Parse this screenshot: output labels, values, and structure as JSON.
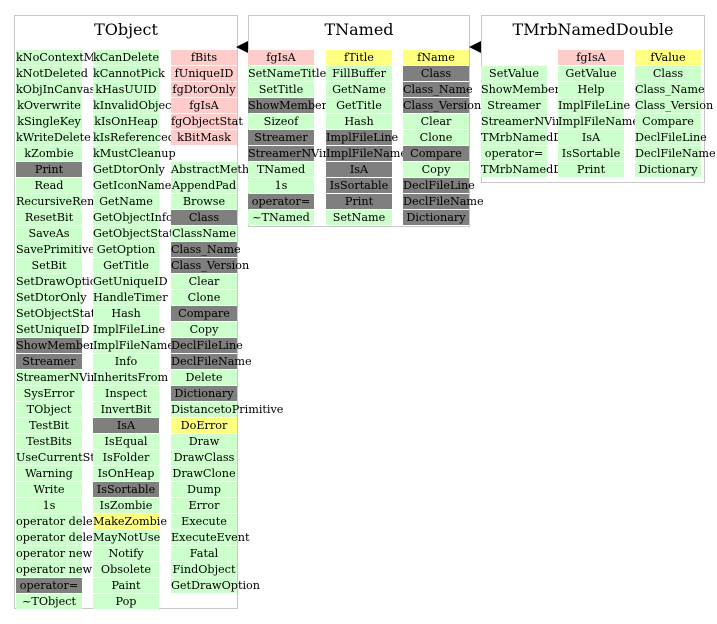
{
  "classes": [
    {
      "name": "TObject",
      "columns": [
        [
          "kNoContextMenu",
          "kNotDeleted",
          "kObjInCanvas",
          "kOverwrite",
          "kSingleKey",
          "kWriteDelete",
          "kZombie",
          "Print",
          "Read",
          "RecursiveRemove",
          "ResetBit",
          "SaveAs",
          "SavePrimitive",
          "SetBit",
          "SetDrawOption",
          "SetDtorOnly",
          "SetObjectStat",
          "SetUniqueID",
          "ShowMembers",
          "Streamer",
          "StreamerNVirtual",
          "SysError",
          "TObject",
          "TestBit",
          "TestBits",
          "UseCurrentStyle",
          "Warning",
          "Write",
          "1s",
          "operator delete",
          "operator delete[]",
          "operator new",
          "operator new[]",
          "operator=",
          "~TObject"
        ],
        [
          "kCanDelete",
          "kCannotPick",
          "kHasUUID",
          "kInvalidObject",
          "kIsOnHeap",
          "kIsReferenced",
          "kMustCleanup",
          "GetDtorOnly",
          "GetIconName",
          "GetName",
          "GetObjectInfo",
          "GetObjectStat",
          "GetOption",
          "GetTitle",
          "GetUniqueID",
          "HandleTimer",
          "Hash",
          "ImplFileLine",
          "ImplFileName",
          "Info",
          "InheritsFrom",
          "Inspect",
          "InvertBit",
          "IsA",
          "IsEqual",
          "IsFolder",
          "IsOnHeap",
          "IsSortable",
          "IsZombie",
          "MakeZombie",
          "MayNotUse",
          "Notify",
          "Obsolete",
          "Paint",
          "Pop"
        ],
        [
          "fBits",
          "fUniqueID",
          "fgDtorOnly",
          "fgIsA",
          "fgObjectStat",
          "kBitMask",
          "",
          "AbstractMethod",
          "AppendPad",
          "Browse",
          "Class",
          "ClassName",
          "Class_Name",
          "Class_Version",
          "Clear",
          "Clone",
          "Compare",
          "Copy",
          "DeclFileLine",
          "DeclFileName",
          "Delete",
          "Dictionary",
          "DistancetoPrimitive",
          "DoError",
          "Draw",
          "DrawClass",
          "DrawClone",
          "Dump",
          "Error",
          "Execute",
          "ExecuteEvent",
          "Fatal",
          "FindObject",
          "GetDrawOption"
        ]
      ]
    },
    {
      "name": "TNamed",
      "columns": [
        [
          "fgIsA",
          "SetNameTitle",
          "SetTitle",
          "ShowMembers",
          "Sizeof",
          "Streamer",
          "StreamerNVirtual",
          "TNamed",
          "1s",
          "operator=",
          "~TNamed"
        ],
        [
          "fTitle",
          "FillBuffer",
          "GetName",
          "GetTitle",
          "Hash",
          "ImplFileLine",
          "ImplFileName",
          "IsA",
          "IsSortable",
          "Print",
          "SetName"
        ],
        [
          "fName",
          "Class",
          "Class_Name",
          "Class_Version",
          "Clear",
          "Clone",
          "Compare",
          "Copy",
          "DeclFileLine",
          "DeclFileName",
          "Dictionary"
        ]
      ]
    },
    {
      "name": "TMrbNamedDouble",
      "columns": [
        [
          "",
          "SetValue",
          "ShowMembers",
          "Streamer",
          "StreamerNVirtual",
          "TMrbNamedDouble",
          "operator=",
          "TMrbNamedDouble"
        ],
        [
          "fgIsA",
          "GetValue",
          "Help",
          "ImplFileLine",
          "ImplFileName",
          "IsA",
          "IsSortable",
          "Print"
        ],
        [
          "fValue",
          "Class",
          "Class_Name",
          "Class_Version",
          "Compare",
          "DeclFileLine",
          "DeclFileName",
          "Dictionary"
        ]
      ]
    }
  ],
  "legend_colors": {
    "public_member": "#ccffcc",
    "private_member": "#ffcccc",
    "inherited_overridden": "#7f7f7f",
    "highlighted": "#ffff80"
  }
}
